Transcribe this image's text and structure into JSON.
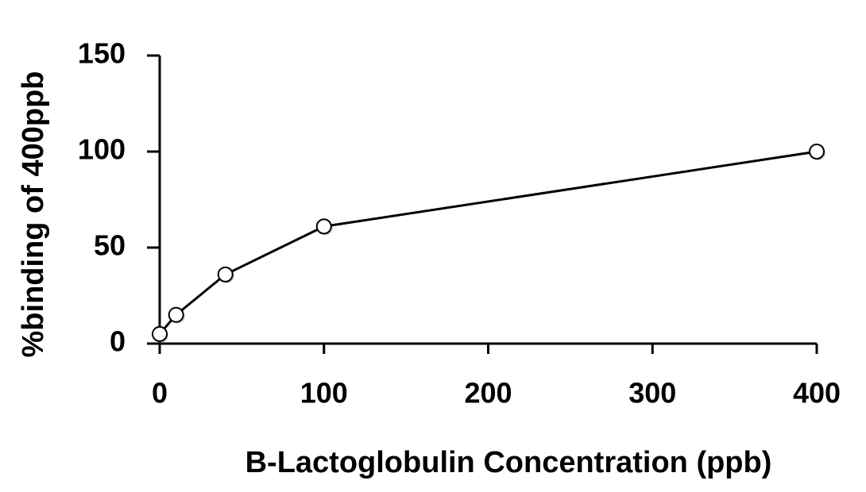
{
  "chart_data": {
    "type": "line",
    "x_label": "B-Lactoglobulin Concentration (ppb)",
    "y_label": "%binding of 400ppb",
    "x": [
      0,
      10,
      40,
      100,
      400
    ],
    "series": [
      {
        "color": "#000000",
        "values": [
          5,
          15,
          36,
          61,
          100
        ]
      }
    ],
    "xlim": [
      0,
      400
    ],
    "xticks": [
      0,
      100,
      200,
      300,
      400
    ],
    "ylim": [
      0,
      150
    ],
    "yticks": [
      0,
      50,
      100,
      150
    ],
    "grid": false
  }
}
